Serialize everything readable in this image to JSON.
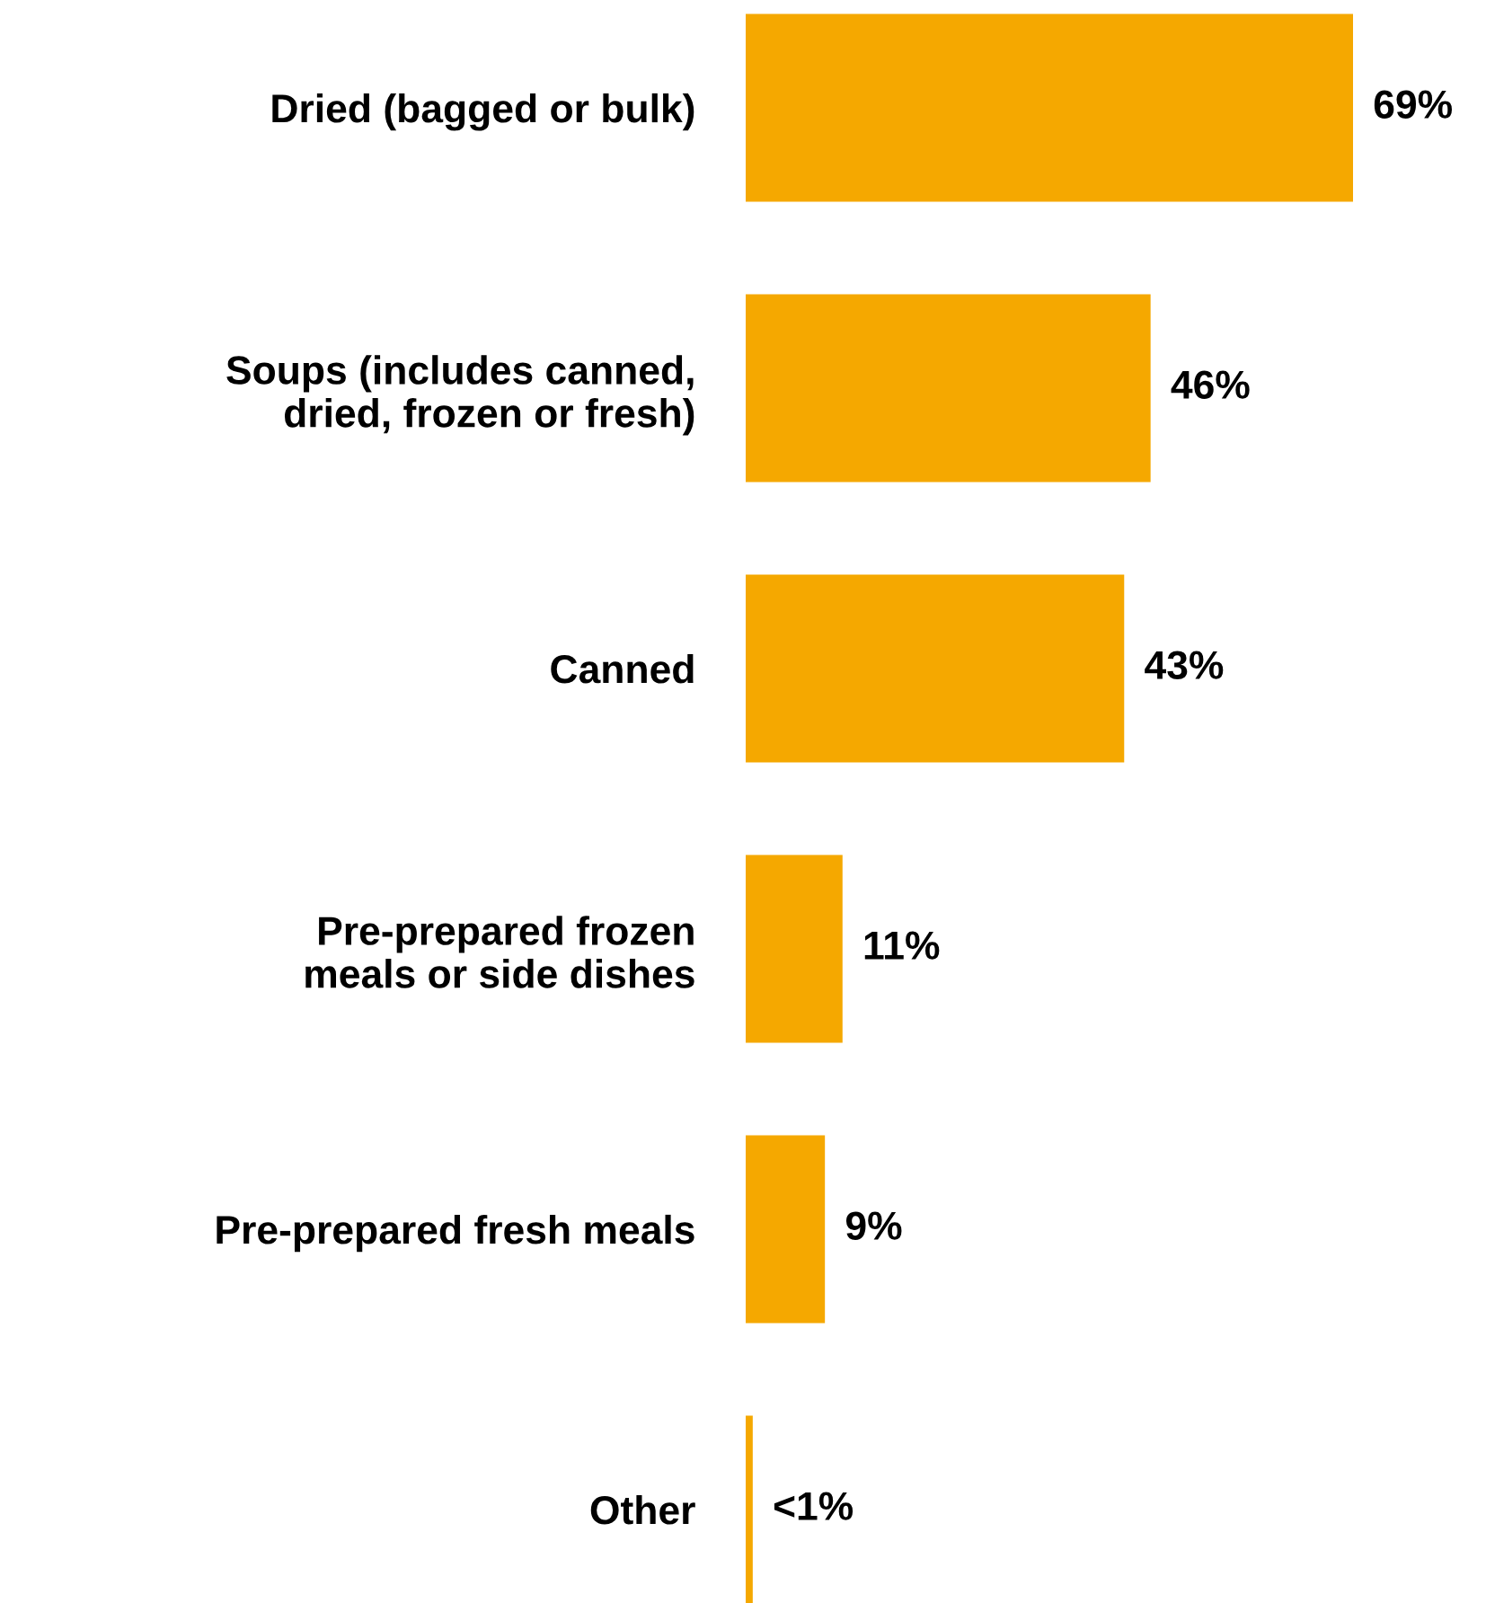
{
  "chart_data": {
    "type": "bar",
    "orientation": "horizontal",
    "categories": [
      "Dried (bagged or bulk)",
      "Soups (includes canned,\ndried, frozen or fresh)",
      "Canned",
      "Pre-prepared frozen\nmeals or side dishes",
      "Pre-prepared fresh meals",
      "Other"
    ],
    "values": [
      69,
      46,
      43,
      11,
      9,
      0.8
    ],
    "color": "#f5a800",
    "value_labels": [
      "69%",
      "46%",
      "43%",
      "11%",
      "9%",
      "<1%"
    ],
    "grid": false,
    "legend": false,
    "tick_labels": "y"
  }
}
